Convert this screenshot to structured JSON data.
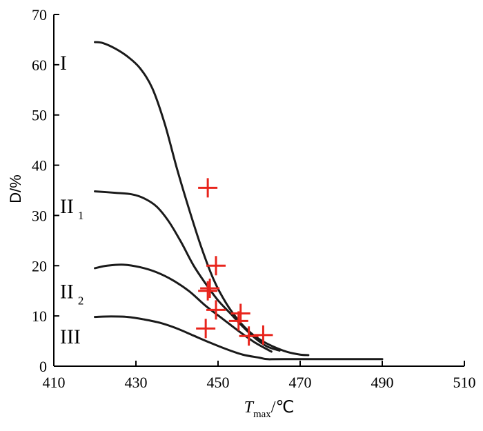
{
  "chart_data": {
    "type": "line",
    "xlabel": {
      "main": "T",
      "sub": "max",
      "unit": "/℃"
    },
    "ylabel": "D/%",
    "xlim": [
      410,
      510
    ],
    "ylim": [
      0,
      70
    ],
    "xticks": [
      "410",
      "430",
      "450",
      "470",
      "490",
      "510"
    ],
    "yticks": [
      "0",
      "10",
      "20",
      "30",
      "40",
      "50",
      "60",
      "70"
    ],
    "grid": false,
    "series": [
      {
        "name": "I",
        "sub": "",
        "label_at": [
          411.5,
          59
        ],
        "x": [
          420,
          422,
          425,
          428,
          431,
          434,
          437,
          440,
          443,
          446,
          449,
          452,
          455,
          458,
          461,
          464,
          467,
          470,
          472
        ],
        "y": [
          64.5,
          64.3,
          63.2,
          61.6,
          59.3,
          55.3,
          48.3,
          39.3,
          31.1,
          23.5,
          17.1,
          12.5,
          9.1,
          6.6,
          4.9,
          3.7,
          2.8,
          2.3,
          2.2
        ]
      },
      {
        "name": "II",
        "sub": "1",
        "label_at": [
          411.5,
          30.5
        ],
        "x": [
          420,
          425,
          429,
          432,
          435,
          438,
          441,
          444,
          447,
          450,
          453,
          456,
          459,
          462,
          465
        ],
        "y": [
          34.8,
          34.5,
          34.2,
          33.4,
          31.8,
          28.8,
          24.7,
          20.1,
          16.4,
          13.1,
          10.5,
          7.9,
          5.6,
          3.9,
          3.1
        ]
      },
      {
        "name": "II",
        "sub": "2",
        "label_at": [
          411.5,
          13.5
        ],
        "x": [
          420,
          423,
          427,
          431,
          435,
          439,
          443,
          447,
          451,
          455,
          459,
          463
        ],
        "y": [
          19.5,
          20.0,
          20.2,
          19.7,
          18.7,
          17.1,
          14.9,
          12.0,
          9.5,
          7.0,
          4.7,
          2.9
        ]
      },
      {
        "name": "III",
        "sub": "",
        "label_at": [
          411.5,
          4.5
        ],
        "x": [
          420,
          424,
          428,
          432,
          436,
          440,
          444,
          448,
          452,
          456,
          460,
          462,
          466,
          490
        ],
        "y": [
          9.8,
          9.9,
          9.8,
          9.3,
          8.6,
          7.5,
          6.1,
          4.7,
          3.4,
          2.3,
          1.7,
          1.4,
          1.4,
          1.4
        ]
      }
    ],
    "markers": {
      "symbol": "+",
      "color": "#e8241c",
      "points": [
        {
          "x": 447.5,
          "y": 35.5
        },
        {
          "x": 449.5,
          "y": 20.0
        },
        {
          "x": 448.0,
          "y": 15.5
        },
        {
          "x": 447.5,
          "y": 15.0
        },
        {
          "x": 449.5,
          "y": 11.2
        },
        {
          "x": 455.5,
          "y": 10.5
        },
        {
          "x": 455.0,
          "y": 9.0
        },
        {
          "x": 447.0,
          "y": 7.5
        },
        {
          "x": 457.5,
          "y": 6.0
        },
        {
          "x": 461.0,
          "y": 6.2
        }
      ]
    }
  }
}
